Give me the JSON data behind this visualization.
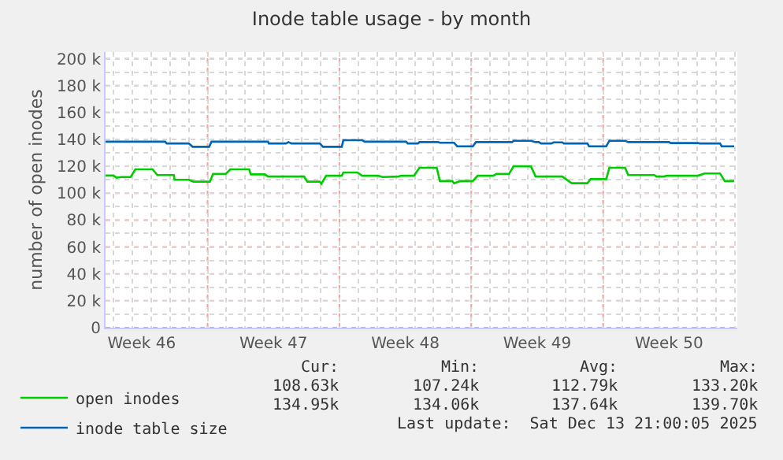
{
  "chart_data": {
    "type": "line",
    "title": "Inode table usage - by month",
    "ylabel": "number of open inodes",
    "xlim": [
      "2025-11-11T14:00",
      "2025-12-15T03:00"
    ],
    "xticks": [
      {
        "value": "2025-11-13T12:00",
        "label": "Week 46"
      },
      {
        "value": "2025-11-17",
        "label": null
      },
      {
        "value": "2025-11-20T12:00",
        "label": "Week 47"
      },
      {
        "value": "2025-11-24",
        "label": null
      },
      {
        "value": "2025-11-27T12:00",
        "label": "Week 48"
      },
      {
        "value": "2025-12-01",
        "label": null
      },
      {
        "value": "2025-12-04T12:00",
        "label": "Week 49"
      },
      {
        "value": "2025-12-08",
        "label": null
      },
      {
        "value": "2025-12-11T12:00",
        "label": "Week 50"
      }
    ],
    "ylim": [
      0,
      205
    ],
    "yticks": [
      0,
      {
        "value": 20,
        "label": "20 k"
      },
      {
        "value": 40,
        "label": "40 k"
      },
      {
        "value": 60,
        "label": "60 k"
      },
      {
        "value": 80,
        "label": "80 k"
      },
      {
        "value": 100,
        "label": "100 k"
      },
      {
        "value": 120,
        "label": "120 k"
      },
      {
        "value": 140,
        "label": "140 k"
      },
      {
        "value": 160,
        "label": "160 k"
      },
      {
        "value": 180,
        "label": "180 k"
      },
      {
        "value": 200,
        "label": "200 k"
      }
    ],
    "grid": true,
    "legend": "bottom",
    "marker": "none",
    "line_style": "solid",
    "series": [
      {
        "name": "open inodes",
        "color": "#00cc00",
        "x": [
          "2025-11-11T14:00",
          "2025-11-12T00:00",
          "2025-11-12T04:00",
          "2025-11-12T10:00",
          "2025-11-12T22:00",
          "2025-11-13T04:00",
          "2025-11-14T02:00",
          "2025-11-14T08:00",
          "2025-11-15T05:00",
          "2025-11-15T06:00",
          "2025-11-16T00:00",
          "2025-11-16T06:00",
          "2025-11-17T03:00",
          "2025-11-17T07:00",
          "2025-11-17T23:00",
          "2025-11-18T05:00",
          "2025-11-19T05:00",
          "2025-11-19T07:00",
          "2025-11-20T01:00",
          "2025-11-20T05:00",
          "2025-11-22T03:00",
          "2025-11-22T07:00",
          "2025-11-22T23:00",
          "2025-11-23T01:00",
          "2025-11-23T07:00",
          "2025-11-24T03:00",
          "2025-11-24T05:00",
          "2025-11-24T23:00",
          "2025-11-25T05:00",
          "2025-11-26T01:00",
          "2025-11-26T07:00",
          "2025-11-27T03:00",
          "2025-11-27T07:00",
          "2025-11-27T23:00",
          "2025-11-28T06:00",
          "2025-11-29T04:00",
          "2025-11-29T08:00",
          "2025-11-30T00:00",
          "2025-11-30T02:00",
          "2025-11-30T10:00",
          "2025-12-01T02:00",
          "2025-12-01T08:00",
          "2025-12-02T04:00",
          "2025-12-02T08:00",
          "2025-12-03T00:00",
          "2025-12-03T06:00",
          "2025-12-04T04:00",
          "2025-12-04T10:00",
          "2025-12-05T20:00",
          "2025-12-06T08:00",
          "2025-12-07T04:00",
          "2025-12-07T08:00",
          "2025-12-08T04:00",
          "2025-12-08T08:00",
          "2025-12-09T04:00",
          "2025-12-09T08:00",
          "2025-12-10T17:00",
          "2025-12-10T20:00",
          "2025-12-11T06:00",
          "2025-12-11T09:00",
          "2025-12-13T01:00",
          "2025-12-13T09:00",
          "2025-12-14T05:00",
          "2025-12-14T11:00",
          "2025-12-14T23:00"
        ],
        "values": [
          113.1,
          113.1,
          111.5,
          112,
          112,
          117.7,
          117.7,
          113.5,
          113.5,
          110,
          110,
          108.6,
          108.6,
          114.3,
          114.3,
          117.7,
          117.7,
          114,
          114,
          112.4,
          112.4,
          108.6,
          108.6,
          107,
          113,
          113,
          115.4,
          115.4,
          113,
          113,
          112,
          112.4,
          113,
          113,
          118.9,
          118.9,
          109,
          109,
          107.4,
          109,
          109,
          113,
          113,
          114.3,
          114.3,
          120,
          120,
          112.4,
          112.4,
          107.4,
          107.4,
          110.5,
          110.5,
          118.9,
          118.9,
          113.5,
          113.5,
          112.4,
          112.4,
          113,
          113,
          114.7,
          114.7,
          109,
          109
        ]
      },
      {
        "name": "inode table size",
        "color": "#0066b3",
        "x": [
          "2025-11-11T14:00",
          "2025-11-14T18:00",
          "2025-11-14T20:00",
          "2025-11-16T00:00",
          "2025-11-16T05:00",
          "2025-11-17T02:00",
          "2025-11-17T05:00",
          "2025-11-20T05:00",
          "2025-11-20T06:00",
          "2025-11-21T04:00",
          "2025-11-21T07:00",
          "2025-11-21T11:00",
          "2025-11-22T23:00",
          "2025-11-23T03:00",
          "2025-11-24T03:00",
          "2025-11-24T05:00",
          "2025-11-25T05:00",
          "2025-11-25T08:00",
          "2025-11-27T13:00",
          "2025-11-27T15:00",
          "2025-11-28T04:00",
          "2025-11-28T06:00",
          "2025-11-29T06:00",
          "2025-11-29T08:00",
          "2025-11-30T02:00",
          "2025-11-30T06:00",
          "2025-12-01T02:00",
          "2025-12-01T06:00",
          "2025-12-03T04:00",
          "2025-12-03T06:00",
          "2025-12-04T04:00",
          "2025-12-04T10:00",
          "2025-12-04T14:00",
          "2025-12-04T17:00",
          "2025-12-05T06:00",
          "2025-12-05T09:00",
          "2025-12-05T20:00",
          "2025-12-05T22:00",
          "2025-12-07T04:00",
          "2025-12-07T06:00",
          "2025-12-08T04:00",
          "2025-12-08T08:00",
          "2025-12-09T04:00",
          "2025-12-09T08:00",
          "2025-12-11T12:00",
          "2025-12-11T14:00",
          "2025-12-13T01:00",
          "2025-12-13T03:00",
          "2025-12-14T05:00",
          "2025-12-14T07:00",
          "2025-12-14T23:00"
        ],
        "values": [
          138.3,
          138.3,
          137,
          137,
          134.5,
          134.5,
          138.3,
          138.3,
          137,
          137,
          138,
          137,
          137,
          134.5,
          134.5,
          139.4,
          139.4,
          138.3,
          138.3,
          137,
          137,
          138,
          138,
          137.5,
          137.5,
          134.9,
          134.9,
          138,
          138,
          139,
          139,
          138,
          138,
          137,
          137,
          137.8,
          137.8,
          137,
          137,
          134.9,
          134.9,
          139,
          139,
          138,
          138,
          137.3,
          137.3,
          137,
          137,
          134.9,
          134.9
        ]
      }
    ],
    "annotations": [
      "Cur:",
      "Min:",
      "Avg:",
      "Max:",
      "108.63k",
      "107.24k",
      "112.79k",
      "133.20k",
      "134.95k",
      "134.06k",
      "137.64k",
      "139.70k",
      "Last update:  Sat Dec 13 21:00:05 2025"
    ]
  }
}
